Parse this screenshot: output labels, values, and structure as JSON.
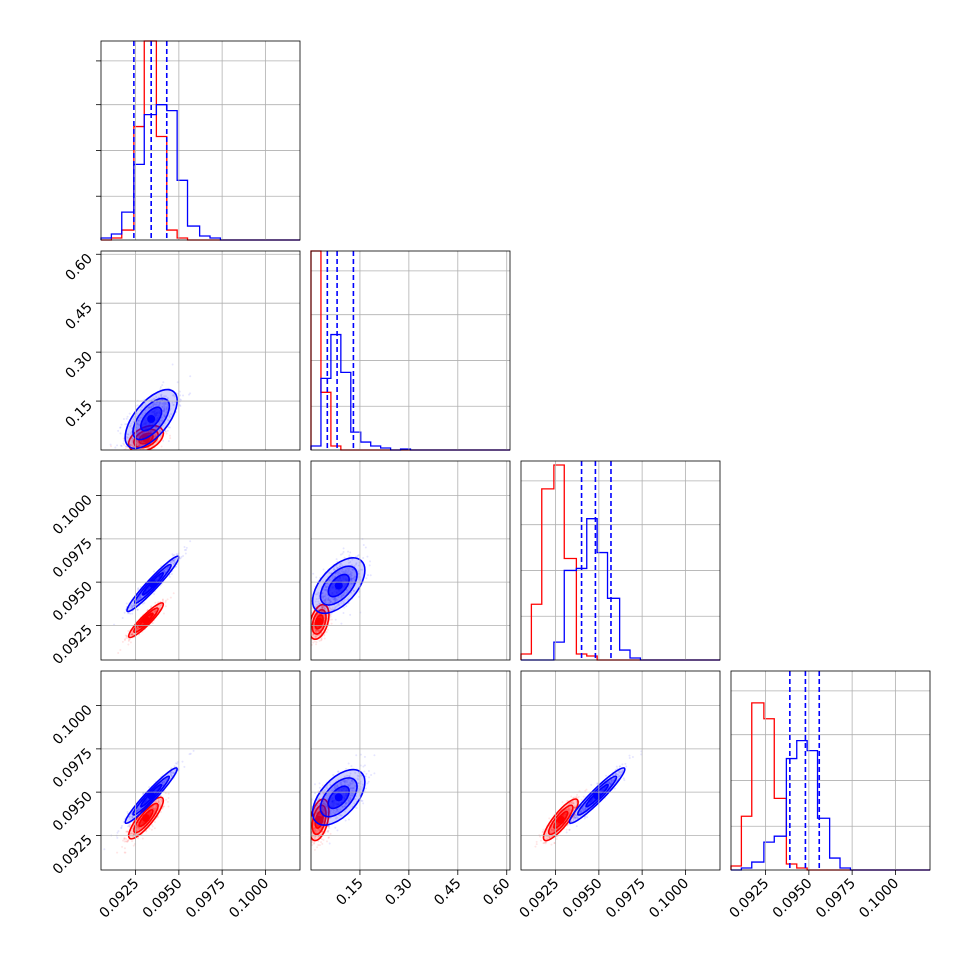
{
  "chart_data": {
    "type": "corner",
    "grid": true,
    "colors": {
      "series_a": "#0000ff",
      "series_b": "#ff0000",
      "grid": "#b0b0b0"
    },
    "series": [
      {
        "color": "#0000ff"
      },
      {
        "color": "#ff0000"
      }
    ],
    "params": [
      {
        "range": [
          0.0905,
          0.102
        ],
        "ticks": [
          0.0925,
          0.095,
          0.0975,
          0.1
        ],
        "tick_labels": [
          "0.0925",
          "0.0950",
          "0.0975",
          "0.1000"
        ]
      },
      {
        "range": [
          0.0,
          0.61
        ],
        "ticks": [
          0.15,
          0.3,
          0.45,
          0.6
        ],
        "tick_labels": [
          "0.15",
          "0.30",
          "0.45",
          "0.60"
        ]
      },
      {
        "range": [
          0.0905,
          0.102
        ],
        "ticks": [
          0.0925,
          0.095,
          0.0975,
          0.1
        ],
        "tick_labels": [
          "0.0925",
          "0.0950",
          "0.0975",
          "0.1000"
        ]
      },
      {
        "range": [
          0.0905,
          0.102
        ],
        "ticks": [
          0.0925,
          0.095,
          0.0975,
          0.1
        ],
        "tick_labels": [
          "0.0925",
          "0.0950",
          "0.0975",
          "0.1000"
        ]
      }
    ],
    "histograms": [
      {
        "quantiles_blue": [
          0.0924,
          0.0934,
          0.0943
        ],
        "blue": {
          "edges": [
            0.0905,
            0.0911,
            0.0917,
            0.0924,
            0.093,
            0.0937,
            0.0943,
            0.0949,
            0.0955,
            0.0962,
            0.0968,
            0.0974,
            0.0981,
            0.099,
            0.1,
            0.101,
            0.102
          ],
          "counts": [
            0.01,
            0.03,
            0.14,
            0.38,
            0.63,
            0.68,
            0.65,
            0.3,
            0.07,
            0.02,
            0.01,
            0,
            0,
            0,
            0,
            0
          ]
        },
        "red": {
          "edges": [
            0.0905,
            0.0911,
            0.0917,
            0.0924,
            0.093,
            0.0937,
            0.0943,
            0.0949,
            0.0955,
            0.0962,
            0.0968,
            0.0974,
            0.0981,
            0.099,
            0.1,
            0.101,
            0.102
          ],
          "counts": [
            0,
            0.01,
            0.05,
            0.57,
            1.0,
            0.52,
            0.05,
            0.01,
            0,
            0,
            0,
            0,
            0,
            0,
            0,
            0
          ]
        }
      },
      {
        "quantiles_blue": [
          0.05,
          0.08,
          0.13
        ],
        "blue": {
          "edges": [
            0.0,
            0.0305,
            0.061,
            0.0915,
            0.122,
            0.1525,
            0.183,
            0.2135,
            0.244,
            0.2745,
            0.305,
            0.3355,
            0.366,
            0.3965,
            0.427,
            0.4575,
            0.488,
            0.5185,
            0.549,
            0.5795,
            0.61
          ],
          "counts": [
            0.02,
            0.36,
            0.58,
            0.39,
            0.09,
            0.04,
            0.02,
            0.01,
            0,
            0.005,
            0,
            0,
            0,
            0,
            0,
            0,
            0,
            0,
            0,
            0
          ]
        },
        "red": {
          "edges": [
            0.0,
            0.0305,
            0.061,
            0.0915,
            0.122,
            0.1525,
            0.183,
            0.2135,
            0.244,
            0.2745,
            0.305,
            0.3355,
            0.366,
            0.3965,
            0.427,
            0.4575,
            0.488,
            0.5185,
            0.549,
            0.5795,
            0.61
          ],
          "counts": [
            1.0,
            0.29,
            0.02,
            0,
            0,
            0,
            0,
            0,
            0,
            0,
            0,
            0,
            0,
            0,
            0,
            0,
            0,
            0,
            0,
            0
          ]
        }
      },
      {
        "quantiles_blue": [
          0.094,
          0.0948,
          0.0957
        ],
        "blue": {
          "edges": [
            0.0905,
            0.0911,
            0.0917,
            0.0924,
            0.093,
            0.0937,
            0.0943,
            0.0949,
            0.0955,
            0.0962,
            0.0968,
            0.0974,
            0.0981,
            0.099,
            0.1,
            0.101,
            0.102
          ],
          "counts": [
            0,
            0,
            0,
            0.09,
            0.45,
            0.46,
            0.71,
            0.54,
            0.31,
            0.05,
            0.01,
            0,
            0,
            0,
            0,
            0
          ]
        },
        "red": {
          "edges": [
            0.0905,
            0.0911,
            0.0917,
            0.0924,
            0.093,
            0.0937,
            0.0943,
            0.0949,
            0.0955,
            0.0962,
            0.0968,
            0.0974,
            0.0981,
            0.099,
            0.1,
            0.101,
            0.102
          ],
          "counts": [
            0.03,
            0.28,
            0.86,
            0.98,
            0.51,
            0.03,
            0.02,
            0,
            0,
            0,
            0,
            0,
            0,
            0,
            0,
            0
          ]
        }
      },
      {
        "quantiles_blue": [
          0.0939,
          0.0948,
          0.0956
        ],
        "blue": {
          "edges": [
            0.0905,
            0.0911,
            0.0917,
            0.0924,
            0.093,
            0.0937,
            0.0943,
            0.0949,
            0.0955,
            0.0962,
            0.0968,
            0.0974,
            0.0981,
            0.099,
            0.1,
            0.101,
            0.102
          ],
          "counts": [
            0,
            0.01,
            0.04,
            0.14,
            0.17,
            0.56,
            0.65,
            0.6,
            0.26,
            0.06,
            0.01,
            0,
            0,
            0,
            0,
            0
          ]
        },
        "red": {
          "edges": [
            0.0905,
            0.0911,
            0.0917,
            0.0924,
            0.093,
            0.0937,
            0.0943,
            0.0949,
            0.0955,
            0.0962,
            0.0968,
            0.0974,
            0.0981,
            0.099,
            0.1,
            0.101,
            0.102
          ],
          "counts": [
            0.02,
            0.27,
            0.84,
            0.76,
            0.36,
            0.03,
            0.01,
            0,
            0,
            0,
            0,
            0,
            0,
            0,
            0,
            0
          ]
        }
      }
    ],
    "scatters": [
      {
        "row": 1,
        "col": 0,
        "blue": {
          "mean": [
            0.0934,
            0.095
          ],
          "sd": [
            0.00075,
            0.045
          ],
          "rho": 0.62
        },
        "red": {
          "mean": [
            0.0931,
            0.035
          ],
          "sd": [
            0.0005,
            0.02
          ],
          "rho": 0.4
        }
      },
      {
        "row": 2,
        "col": 0,
        "blue": {
          "mean": [
            0.0935,
            0.0949
          ],
          "sd": [
            0.00075,
            0.0008
          ],
          "rho": 0.96
        },
        "red": {
          "mean": [
            0.0931,
            0.0928
          ],
          "sd": [
            0.0005,
            0.0005
          ],
          "rho": 0.92
        }
      },
      {
        "row": 2,
        "col": 1,
        "blue": {
          "mean": [
            0.085,
            0.0948
          ],
          "sd": [
            0.04,
            0.0008
          ],
          "rho": 0.55
        },
        "red": {
          "mean": [
            0.025,
            0.0927
          ],
          "sd": [
            0.015,
            0.0005
          ],
          "rho": 0.4
        }
      },
      {
        "row": 3,
        "col": 0,
        "blue": {
          "mean": [
            0.0934,
            0.0948
          ],
          "sd": [
            0.00075,
            0.0008
          ],
          "rho": 0.96
        },
        "red": {
          "mean": [
            0.0931,
            0.0935
          ],
          "sd": [
            0.0005,
            0.0006
          ],
          "rho": 0.85
        }
      },
      {
        "row": 3,
        "col": 1,
        "blue": {
          "mean": [
            0.085,
            0.0947
          ],
          "sd": [
            0.04,
            0.0008
          ],
          "rho": 0.55
        },
        "red": {
          "mean": [
            0.025,
            0.0934
          ],
          "sd": [
            0.015,
            0.0006
          ],
          "rho": 0.4
        }
      },
      {
        "row": 3,
        "col": 2,
        "blue": {
          "mean": [
            0.0949,
            0.0948
          ],
          "sd": [
            0.0008,
            0.0008
          ],
          "rho": 0.95
        },
        "red": {
          "mean": [
            0.0928,
            0.0934
          ],
          "sd": [
            0.0005,
            0.0006
          ],
          "rho": 0.85
        }
      }
    ]
  }
}
